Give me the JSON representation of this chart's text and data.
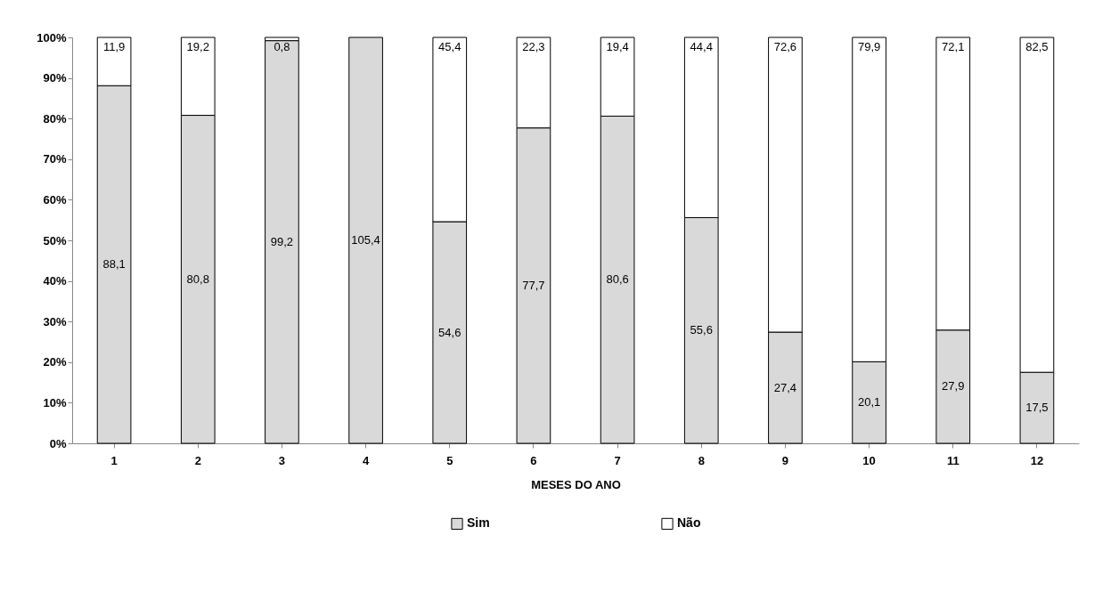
{
  "chart_data": {
    "type": "bar",
    "stacked": true,
    "xlabel": "MESES DO ANO",
    "categories": [
      "1",
      "2",
      "3",
      "4",
      "5",
      "6",
      "7",
      "8",
      "9",
      "10",
      "11",
      "12"
    ],
    "series": [
      {
        "name": "Sim",
        "color": "#d9d9d9",
        "values": [
          88.1,
          80.8,
          99.2,
          100,
          54.6,
          77.7,
          80.6,
          55.6,
          27.4,
          20.1,
          27.9,
          17.5
        ],
        "value_labels": [
          "88,1",
          "80,8",
          "99,2",
          null,
          "54,6",
          "77,7",
          "80,6",
          "55,6",
          "27,4",
          "20,1",
          "27,9",
          "17,5"
        ]
      },
      {
        "name": "Não",
        "color": "#ffffff",
        "values": [
          11.9,
          19.2,
          0.8,
          null,
          45.4,
          22.3,
          19.4,
          44.4,
          72.6,
          79.9,
          72.1,
          82.5
        ],
        "value_labels": [
          "11,9",
          "19,2",
          "0,8",
          null,
          "45,4",
          "22,3",
          "19,4",
          "44,4",
          "72,6",
          "79,9",
          "72,1",
          "82,5"
        ]
      }
    ],
    "ylim": [
      0,
      100
    ],
    "yticks": [
      {
        "value": 0,
        "label": "0%"
      },
      {
        "value": 10,
        "label": "10%"
      },
      {
        "value": 20,
        "label": "20%"
      },
      {
        "value": 30,
        "label": "30%"
      },
      {
        "value": 40,
        "label": "40%"
      },
      {
        "value": 50,
        "label": "50%"
      },
      {
        "value": 60,
        "label": "60%"
      },
      {
        "value": 70,
        "label": "70%"
      },
      {
        "value": 80,
        "label": "80%"
      },
      {
        "value": 90,
        "label": "90%"
      },
      {
        "value": 100,
        "label": "100%"
      }
    ],
    "annotations": [
      "105,4"
    ],
    "legend": "bottom"
  }
}
